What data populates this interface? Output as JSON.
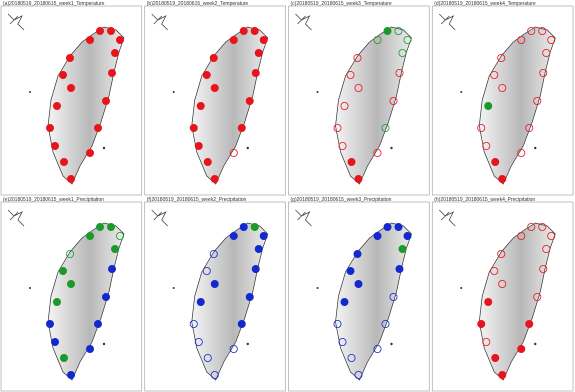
{
  "palette": {
    "red": "#e8141c",
    "green": "#1a9a28",
    "blue": "#1428d0"
  },
  "panels": [
    {
      "title": "(a)20180519_20180615_week1_Temperature",
      "colors": [
        "red",
        "red",
        "red",
        "red",
        "red",
        "red",
        "red",
        "red",
        "red",
        "red",
        "red",
        "red",
        "red",
        "red",
        "red",
        "red",
        "red"
      ],
      "filled": [
        true,
        true,
        true,
        true,
        true,
        true,
        true,
        true,
        true,
        true,
        true,
        true,
        true,
        true,
        true,
        true,
        true
      ]
    },
    {
      "title": "(b)20180519_20180615_week2_Temperature",
      "colors": [
        "red",
        "red",
        "red",
        "red",
        "red",
        "red",
        "red",
        "red",
        "red",
        "red",
        "red",
        "red",
        "red",
        "red",
        "red",
        "red",
        "red"
      ],
      "filled": [
        true,
        true,
        true,
        true,
        true,
        true,
        true,
        true,
        true,
        true,
        true,
        true,
        true,
        false,
        true,
        true,
        true
      ]
    },
    {
      "title": "(c)20180519_20180615_week3_Temperature",
      "colors": [
        "green",
        "green",
        "green",
        "green",
        "green",
        "red",
        "red",
        "red",
        "red",
        "red",
        "red",
        "red",
        "red",
        "red",
        "green",
        "red",
        "red"
      ],
      "filled": [
        false,
        true,
        false,
        false,
        false,
        false,
        false,
        false,
        false,
        false,
        false,
        true,
        true,
        false,
        false,
        false,
        false
      ]
    },
    {
      "title": "(d)20180519_20180615_week4_Temperature",
      "colors": [
        "red",
        "red",
        "red",
        "red",
        "red",
        "red",
        "red",
        "red",
        "green",
        "red",
        "red",
        "red",
        "red",
        "red",
        "red",
        "red",
        "red"
      ],
      "filled": [
        false,
        false,
        false,
        false,
        false,
        false,
        false,
        false,
        true,
        false,
        false,
        true,
        true,
        false,
        false,
        false,
        false
      ]
    },
    {
      "title": "(e)20180519_20180615_week1_Precipitation",
      "colors": [
        "green",
        "green",
        "green",
        "green",
        "green",
        "green",
        "green",
        "green",
        "green",
        "blue",
        "blue",
        "green",
        "blue",
        "blue",
        "blue",
        "blue",
        "blue"
      ],
      "filled": [
        true,
        true,
        true,
        false,
        true,
        false,
        true,
        true,
        true,
        true,
        true,
        true,
        true,
        true,
        true,
        true,
        true
      ]
    },
    {
      "title": "(f)20180519_20180615_week2_Precipitation",
      "colors": [
        "blue",
        "blue",
        "green",
        "blue",
        "blue",
        "blue",
        "blue",
        "blue",
        "blue",
        "blue",
        "blue",
        "blue",
        "blue",
        "blue",
        "blue",
        "blue",
        "blue"
      ],
      "filled": [
        true,
        true,
        true,
        true,
        true,
        false,
        false,
        true,
        true,
        false,
        false,
        false,
        false,
        false,
        true,
        true,
        true
      ]
    },
    {
      "title": "(g)20180519_20180615_week3_Precipitation",
      "colors": [
        "blue",
        "blue",
        "blue",
        "blue",
        "green",
        "blue",
        "blue",
        "blue",
        "blue",
        "blue",
        "blue",
        "blue",
        "blue",
        "blue",
        "blue",
        "blue",
        "blue"
      ],
      "filled": [
        true,
        true,
        true,
        true,
        true,
        true,
        true,
        true,
        true,
        false,
        false,
        false,
        false,
        false,
        false,
        false,
        true
      ]
    },
    {
      "title": "(h)20180519_20180615_week4_Precipitation",
      "colors": [
        "red",
        "red",
        "red",
        "red",
        "red",
        "red",
        "red",
        "red",
        "red",
        "red",
        "red",
        "red",
        "red",
        "red",
        "red",
        "red",
        "red"
      ],
      "filled": [
        false,
        false,
        false,
        false,
        false,
        false,
        false,
        false,
        true,
        true,
        false,
        true,
        true,
        true,
        true,
        false,
        false
      ]
    }
  ]
}
